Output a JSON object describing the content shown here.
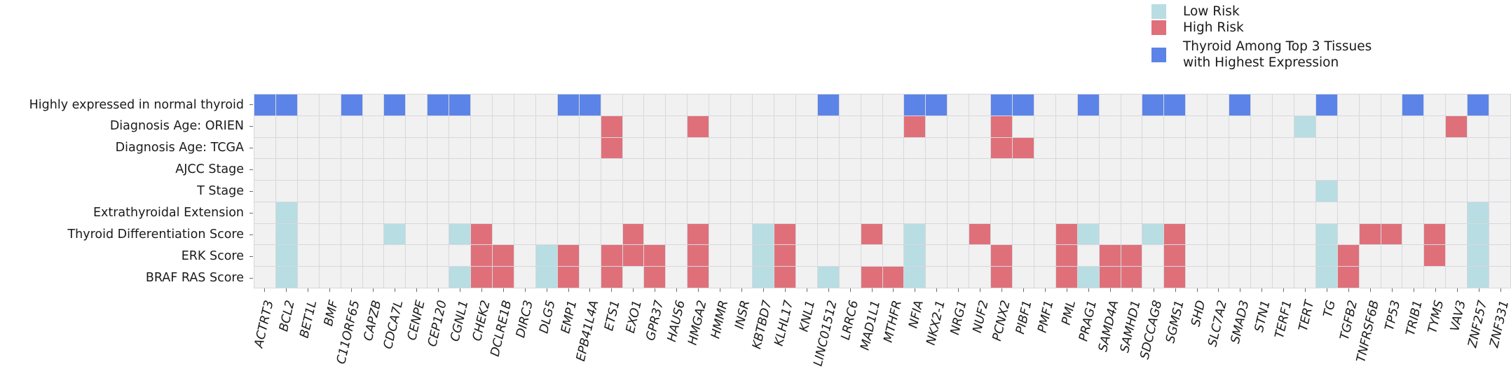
{
  "chart_data": {
    "type": "heatmap",
    "description": "Clinical feature associations per gene; colored cells mark category membership",
    "legend": [
      {
        "key": "L",
        "label": "Low Risk",
        "color": "#b8dde3"
      },
      {
        "key": "H",
        "label": "High Risk",
        "color": "#df707a"
      },
      {
        "key": "B",
        "label": "Thyroid Among Top 3 Tissues with Highest Expression",
        "label_lines": [
          "Thyroid Among Top 3 Tissues",
          "with Highest Expression"
        ],
        "color": "#5c84e8"
      }
    ],
    "legend_position": "top-right",
    "empty_color": "#f1f1f2",
    "gridline_color": "#d8d8dc",
    "rows": [
      "Highly expressed in normal thyroid",
      "Diagnosis Age: ORIEN",
      "Diagnosis Age: TCGA",
      "AJCC Stage",
      "T Stage",
      "Extrathyroidal Extension",
      "Thyroid Differentiation Score",
      "ERK Score",
      "BRAF RAS Score"
    ],
    "columns": [
      "ACTRT3",
      "BCL2",
      "BET1L",
      "BMF",
      "C11ORF65",
      "CAPZB",
      "CDCA7L",
      "CENPE",
      "CEP120",
      "CGNL1",
      "CHEK2",
      "DCLRE1B",
      "DIRC3",
      "DLG5",
      "EMP1",
      "EPB41L4A",
      "ETS1",
      "EXO1",
      "GPR37",
      "HAUS6",
      "HMGA2",
      "HMMR",
      "INSR",
      "KBTBD7",
      "KLHL17",
      "KNL1",
      "LINC01512",
      "LRRC6",
      "MAD1L1",
      "MTHFR",
      "NFIA",
      "NKX2-1",
      "NRG1",
      "NUF2",
      "PCNX2",
      "PIBF1",
      "PMF1",
      "PML",
      "PRAG1",
      "SAMD4A",
      "SAMHD1",
      "SDCCAG8",
      "SGMS1",
      "SHD",
      "SLC7A2",
      "SMAD3",
      "STN1",
      "TERF1",
      "TERT",
      "TG",
      "TGFB2",
      "TNFRSF6B",
      "TP53",
      "TRIB1",
      "TYMS",
      "VAV3",
      "ZNF257",
      "ZNF331"
    ],
    "matrix": {
      "Highly expressed in normal thyroid": {
        "ACTRT3": "B",
        "BCL2": "B",
        "C11ORF65": "B",
        "CDCA7L": "B",
        "CEP120": "B",
        "CGNL1": "B",
        "EMP1": "B",
        "EPB41L4A": "B",
        "LINC01512": "B",
        "NFIA": "B",
        "NKX2-1": "B",
        "PCNX2": "B",
        "PIBF1": "B",
        "PRAG1": "B",
        "SDCCAG8": "B",
        "SGMS1": "B",
        "SMAD3": "B",
        "TG": "B",
        "TRIB1": "B",
        "ZNF257": "B"
      },
      "Diagnosis Age: ORIEN": {
        "ETS1": "H",
        "HMGA2": "H",
        "NFIA": "H",
        "PCNX2": "H",
        "TERT": "L",
        "VAV3": "H"
      },
      "Diagnosis Age: TCGA": {
        "ETS1": "H",
        "PCNX2": "H",
        "PIBF1": "H"
      },
      "AJCC Stage": {},
      "T Stage": {
        "TG": "L"
      },
      "Extrathyroidal Extension": {
        "BCL2": "L",
        "ZNF257": "L"
      },
      "Thyroid Differentiation Score": {
        "BCL2": "L",
        "CDCA7L": "L",
        "CGNL1": "L",
        "CHEK2": "H",
        "EXO1": "H",
        "HMGA2": "H",
        "KBTBD7": "L",
        "KLHL17": "H",
        "MAD1L1": "H",
        "NFIA": "L",
        "NUF2": "H",
        "PML": "H",
        "PRAG1": "L",
        "SDCCAG8": "L",
        "SGMS1": "H",
        "TG": "L",
        "TNFRSF6B": "H",
        "TP53": "H",
        "TYMS": "H",
        "ZNF257": "L"
      },
      "ERK Score": {
        "BCL2": "L",
        "CHEK2": "H",
        "DCLRE1B": "H",
        "DLG5": "L",
        "EMP1": "H",
        "ETS1": "H",
        "EXO1": "H",
        "GPR37": "H",
        "HMGA2": "H",
        "KBTBD7": "L",
        "KLHL17": "H",
        "NFIA": "L",
        "PCNX2": "H",
        "PML": "H",
        "SAMD4A": "H",
        "SAMHD1": "H",
        "SGMS1": "H",
        "TG": "L",
        "TGFB2": "H",
        "TYMS": "H",
        "ZNF257": "L"
      },
      "BRAF RAS Score": {
        "BCL2": "L",
        "CGNL1": "L",
        "CHEK2": "H",
        "DCLRE1B": "H",
        "DLG5": "L",
        "EMP1": "H",
        "ETS1": "H",
        "GPR37": "H",
        "HMGA2": "H",
        "KBTBD7": "L",
        "KLHL17": "H",
        "LINC01512": "L",
        "MAD1L1": "H",
        "MTHFR": "H",
        "NFIA": "L",
        "PCNX2": "H",
        "PML": "H",
        "PRAG1": "L",
        "SAMD4A": "H",
        "SAMHD1": "H",
        "SGMS1": "H",
        "TG": "L",
        "TGFB2": "H",
        "ZNF257": "L"
      }
    }
  }
}
